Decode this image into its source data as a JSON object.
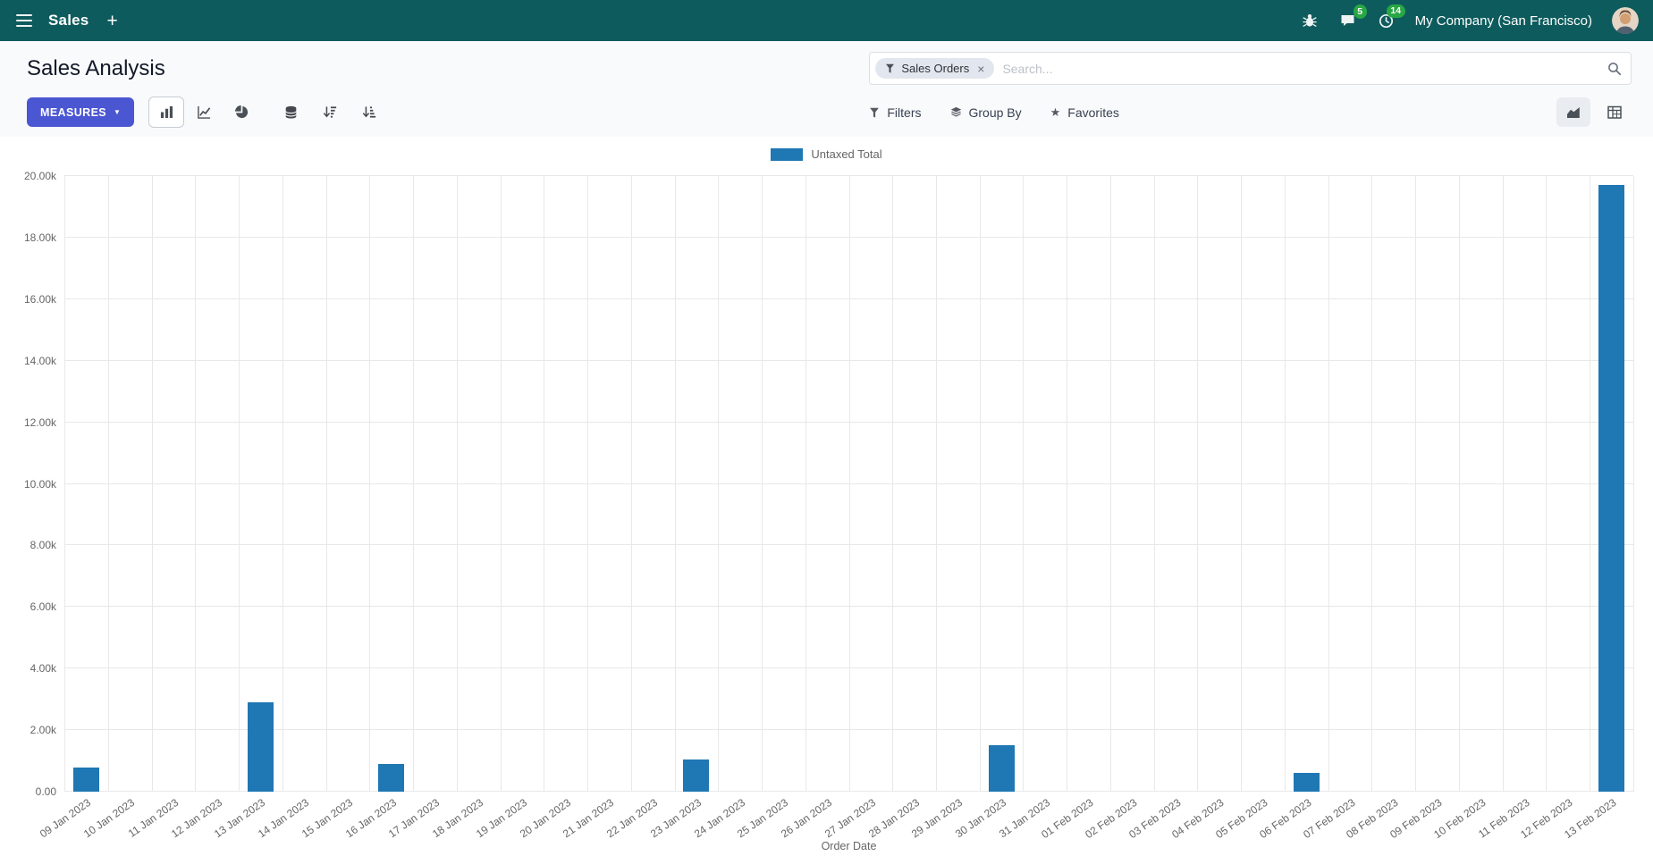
{
  "navbar": {
    "app_name": "Sales",
    "company": "My Company (San Francisco)",
    "messages_badge": "5",
    "activities_badge": "14"
  },
  "icons": {
    "plus": "+",
    "close": "×",
    "star": "★",
    "caret_down": "▼"
  },
  "control_panel": {
    "title": "Sales Analysis",
    "search": {
      "facet": "Sales Orders",
      "placeholder": "Search..."
    },
    "measures_label": "MEASURES",
    "filters_label": "Filters",
    "group_by_label": "Group By",
    "favorites_label": "Favorites"
  },
  "colors": {
    "navbar_bg": "#0e5b5d",
    "primary_button": "#4b56d2",
    "bar": "#1f77b4",
    "badge": "#28a745"
  },
  "chart_data": {
    "type": "bar",
    "title": "",
    "xlabel": "Order Date",
    "ylabel": "",
    "ylim": [
      0,
      20000
    ],
    "ytick_step": 2000,
    "ytick_labels": [
      "0.00",
      "2.00k",
      "4.00k",
      "6.00k",
      "8.00k",
      "10.00k",
      "12.00k",
      "14.00k",
      "16.00k",
      "18.00k",
      "20.00k"
    ],
    "grid": true,
    "legend_position": "top",
    "categories": [
      "09 Jan 2023",
      "10 Jan 2023",
      "11 Jan 2023",
      "12 Jan 2023",
      "13 Jan 2023",
      "14 Jan 2023",
      "15 Jan 2023",
      "16 Jan 2023",
      "17 Jan 2023",
      "18 Jan 2023",
      "19 Jan 2023",
      "20 Jan 2023",
      "21 Jan 2023",
      "22 Jan 2023",
      "23 Jan 2023",
      "24 Jan 2023",
      "25 Jan 2023",
      "26 Jan 2023",
      "27 Jan 2023",
      "28 Jan 2023",
      "29 Jan 2023",
      "30 Jan 2023",
      "31 Jan 2023",
      "01 Feb 2023",
      "02 Feb 2023",
      "03 Feb 2023",
      "04 Feb 2023",
      "05 Feb 2023",
      "06 Feb 2023",
      "07 Feb 2023",
      "08 Feb 2023",
      "09 Feb 2023",
      "10 Feb 2023",
      "11 Feb 2023",
      "12 Feb 2023",
      "13 Feb 2023"
    ],
    "series": [
      {
        "name": "Untaxed Total",
        "color": "#1f77b4",
        "values": [
          780,
          0,
          0,
          0,
          2900,
          0,
          0,
          900,
          0,
          0,
          0,
          0,
          0,
          0,
          1050,
          0,
          0,
          0,
          0,
          0,
          0,
          1500,
          0,
          0,
          0,
          0,
          0,
          0,
          620,
          0,
          0,
          0,
          0,
          0,
          0,
          19700
        ]
      }
    ]
  }
}
